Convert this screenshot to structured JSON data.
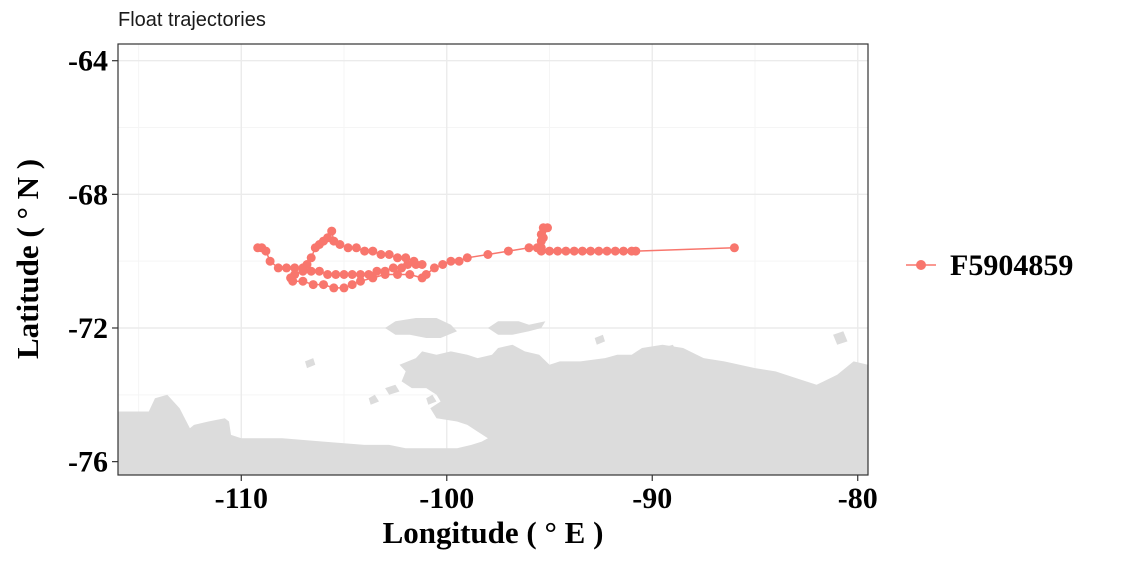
{
  "colors": {
    "series": "#F8766D",
    "land": "#DCDCDC",
    "grid_major": "#EBEBEB",
    "grid_minor": "#F5F5F5",
    "border": "#333333"
  },
  "chart_data": {
    "type": "line",
    "title": "Float trajectories",
    "xlabel": "Longitude ( ° E )",
    "ylabel": "Latitude ( ° N )",
    "xlim": [
      -116,
      -79.5
    ],
    "ylim": [
      -76.4,
      -63.5
    ],
    "x_ticks": [
      -110,
      -100,
      -90,
      -80
    ],
    "y_ticks": [
      -64,
      -68,
      -72,
      -76
    ],
    "x_tick_labels": [
      "-110",
      "-100",
      "-90",
      "-80"
    ],
    "y_tick_labels": [
      "-64",
      "-68",
      "-72",
      "-76"
    ],
    "grid": true,
    "legend_position": "right",
    "series": [
      {
        "name": "F5904859",
        "marker": "circle",
        "points": [
          [
            -109.2,
            -69.6
          ],
          [
            -109.0,
            -69.6
          ],
          [
            -108.8,
            -69.7
          ],
          [
            -108.6,
            -70.0
          ],
          [
            -108.2,
            -70.2
          ],
          [
            -107.8,
            -70.2
          ],
          [
            -107.4,
            -70.2
          ],
          [
            -107.0,
            -70.2
          ],
          [
            -106.6,
            -70.3
          ],
          [
            -106.2,
            -70.3
          ],
          [
            -105.8,
            -70.4
          ],
          [
            -105.4,
            -70.4
          ],
          [
            -105.0,
            -70.4
          ],
          [
            -104.6,
            -70.4
          ],
          [
            -104.2,
            -70.4
          ],
          [
            -103.8,
            -70.4
          ],
          [
            -103.4,
            -70.3
          ],
          [
            -103.0,
            -70.3
          ],
          [
            -102.6,
            -70.2
          ],
          [
            -102.2,
            -70.2
          ],
          [
            -101.9,
            -70.1
          ],
          [
            -101.5,
            -70.1
          ],
          [
            -101.2,
            -70.1
          ],
          [
            -101.6,
            -70.0
          ],
          [
            -102.0,
            -69.9
          ],
          [
            -102.4,
            -69.9
          ],
          [
            -102.8,
            -69.8
          ],
          [
            -103.2,
            -69.8
          ],
          [
            -103.6,
            -69.7
          ],
          [
            -104.0,
            -69.7
          ],
          [
            -104.4,
            -69.6
          ],
          [
            -104.8,
            -69.6
          ],
          [
            -105.2,
            -69.5
          ],
          [
            -105.5,
            -69.4
          ],
          [
            -105.6,
            -69.1
          ],
          [
            -105.8,
            -69.3
          ],
          [
            -106.0,
            -69.4
          ],
          [
            -106.2,
            -69.5
          ],
          [
            -106.4,
            -69.6
          ],
          [
            -106.6,
            -69.9
          ],
          [
            -106.8,
            -70.1
          ],
          [
            -107.0,
            -70.3
          ],
          [
            -107.4,
            -70.4
          ],
          [
            -107.6,
            -70.5
          ],
          [
            -107.5,
            -70.6
          ],
          [
            -107.0,
            -70.6
          ],
          [
            -106.5,
            -70.7
          ],
          [
            -106.0,
            -70.7
          ],
          [
            -105.5,
            -70.8
          ],
          [
            -105.0,
            -70.8
          ],
          [
            -104.6,
            -70.7
          ],
          [
            -104.2,
            -70.6
          ],
          [
            -103.6,
            -70.5
          ],
          [
            -103.0,
            -70.4
          ],
          [
            -102.4,
            -70.4
          ],
          [
            -101.8,
            -70.4
          ],
          [
            -101.2,
            -70.5
          ],
          [
            -101.0,
            -70.4
          ],
          [
            -100.6,
            -70.2
          ],
          [
            -100.2,
            -70.1
          ],
          [
            -99.8,
            -70.0
          ],
          [
            -99.4,
            -70.0
          ],
          [
            -99.0,
            -69.9
          ],
          [
            -98.0,
            -69.8
          ],
          [
            -97.0,
            -69.7
          ],
          [
            -96.0,
            -69.6
          ],
          [
            -95.6,
            -69.6
          ],
          [
            -95.4,
            -69.4
          ],
          [
            -95.4,
            -69.2
          ],
          [
            -95.3,
            -69.0
          ],
          [
            -95.1,
            -69.0
          ],
          [
            -95.3,
            -69.3
          ],
          [
            -95.4,
            -69.6
          ],
          [
            -95.4,
            -69.7
          ],
          [
            -95.0,
            -69.7
          ],
          [
            -94.6,
            -69.7
          ],
          [
            -94.2,
            -69.7
          ],
          [
            -93.8,
            -69.7
          ],
          [
            -93.4,
            -69.7
          ],
          [
            -93.0,
            -69.7
          ],
          [
            -92.6,
            -69.7
          ],
          [
            -92.2,
            -69.7
          ],
          [
            -91.8,
            -69.7
          ],
          [
            -91.4,
            -69.7
          ],
          [
            -91.0,
            -69.7
          ],
          [
            -90.8,
            -69.7
          ],
          [
            -86.0,
            -69.6
          ]
        ]
      }
    ],
    "land_polygons": [
      [
        [
          -116,
          -76.4
        ],
        [
          -116,
          -74.5
        ],
        [
          -115.2,
          -74.5
        ],
        [
          -114.5,
          -74.5
        ],
        [
          -114.2,
          -74.1
        ],
        [
          -113.6,
          -74.0
        ],
        [
          -113.0,
          -74.4
        ],
        [
          -112.5,
          -75.0
        ],
        [
          -112.3,
          -74.9
        ],
        [
          -111.6,
          -74.8
        ],
        [
          -110.8,
          -74.7
        ],
        [
          -110.6,
          -74.8
        ],
        [
          -110.5,
          -75.2
        ],
        [
          -110.0,
          -75.3
        ],
        [
          -108.0,
          -75.3
        ],
        [
          -106.0,
          -75.4
        ],
        [
          -104.0,
          -75.5
        ],
        [
          -102.8,
          -75.5
        ],
        [
          -102.0,
          -75.6
        ],
        [
          -100.5,
          -75.6
        ],
        [
          -99.5,
          -75.6
        ],
        [
          -98.8,
          -75.5
        ],
        [
          -98.3,
          -75.4
        ],
        [
          -98.0,
          -75.3
        ],
        [
          -98.5,
          -75.1
        ],
        [
          -99.0,
          -74.9
        ],
        [
          -99.5,
          -74.8
        ],
        [
          -100.5,
          -74.7
        ],
        [
          -100.8,
          -74.4
        ],
        [
          -100.3,
          -74.2
        ],
        [
          -100.5,
          -74.0
        ],
        [
          -101.0,
          -73.8
        ],
        [
          -101.7,
          -73.8
        ],
        [
          -102.2,
          -73.6
        ],
        [
          -102.0,
          -73.3
        ],
        [
          -102.3,
          -73.1
        ],
        [
          -101.5,
          -72.9
        ],
        [
          -101.2,
          -72.7
        ],
        [
          -100.5,
          -72.8
        ],
        [
          -99.8,
          -72.7
        ],
        [
          -99.0,
          -72.8
        ],
        [
          -98.5,
          -72.9
        ],
        [
          -97.8,
          -72.8
        ],
        [
          -97.5,
          -72.6
        ],
        [
          -96.8,
          -72.5
        ],
        [
          -96.2,
          -72.7
        ],
        [
          -95.5,
          -72.8
        ],
        [
          -95.0,
          -73.1
        ],
        [
          -94.5,
          -73.0
        ],
        [
          -93.5,
          -73.0
        ],
        [
          -92.3,
          -72.9
        ],
        [
          -91.7,
          -72.8
        ],
        [
          -91.0,
          -72.8
        ],
        [
          -90.5,
          -72.6
        ],
        [
          -89.5,
          -72.5
        ],
        [
          -88.5,
          -72.6
        ],
        [
          -87.5,
          -72.9
        ],
        [
          -86.5,
          -73.0
        ],
        [
          -85.0,
          -73.2
        ],
        [
          -84.0,
          -73.3
        ],
        [
          -83.0,
          -73.5
        ],
        [
          -82.0,
          -73.7
        ],
        [
          -81.0,
          -73.4
        ],
        [
          -80.2,
          -73.0
        ],
        [
          -79.5,
          -73.1
        ],
        [
          -79.5,
          -76.4
        ]
      ],
      [
        [
          -98.0,
          -72.0
        ],
        [
          -97.5,
          -71.8
        ],
        [
          -96.5,
          -71.8
        ],
        [
          -96.0,
          -71.9
        ],
        [
          -95.2,
          -71.8
        ],
        [
          -95.4,
          -72.0
        ],
        [
          -96.0,
          -72.1
        ],
        [
          -96.8,
          -72.2
        ],
        [
          -97.5,
          -72.2
        ]
      ],
      [
        [
          -103.0,
          -72.0
        ],
        [
          -102.5,
          -71.8
        ],
        [
          -101.5,
          -71.7
        ],
        [
          -100.5,
          -71.7
        ],
        [
          -99.8,
          -71.9
        ],
        [
          -99.5,
          -72.1
        ],
        [
          -100.3,
          -72.3
        ],
        [
          -101.0,
          -72.3
        ],
        [
          -101.8,
          -72.2
        ],
        [
          -102.5,
          -72.2
        ]
      ],
      [
        [
          -103.0,
          -73.8
        ],
        [
          -102.5,
          -73.7
        ],
        [
          -102.3,
          -73.9
        ],
        [
          -102.8,
          -74.0
        ]
      ],
      [
        [
          -103.8,
          -74.1
        ],
        [
          -103.5,
          -74.0
        ],
        [
          -103.3,
          -74.2
        ],
        [
          -103.7,
          -74.3
        ]
      ],
      [
        [
          -101.0,
          -74.1
        ],
        [
          -100.7,
          -74.0
        ],
        [
          -100.5,
          -74.2
        ],
        [
          -100.9,
          -74.3
        ]
      ],
      [
        [
          -99.2,
          -74.4
        ],
        [
          -99.0,
          -74.3
        ],
        [
          -98.8,
          -74.5
        ],
        [
          -99.1,
          -74.6
        ]
      ],
      [
        [
          -106.9,
          -73.0
        ],
        [
          -106.5,
          -72.9
        ],
        [
          -106.4,
          -73.1
        ],
        [
          -106.8,
          -73.2
        ]
      ],
      [
        [
          -89.5,
          -72.6
        ],
        [
          -89.0,
          -72.5
        ],
        [
          -88.8,
          -72.7
        ],
        [
          -89.3,
          -72.8
        ]
      ],
      [
        [
          -92.8,
          -72.3
        ],
        [
          -92.4,
          -72.2
        ],
        [
          -92.3,
          -72.4
        ],
        [
          -92.7,
          -72.5
        ]
      ],
      [
        [
          -81.2,
          -72.2
        ],
        [
          -80.7,
          -72.1
        ],
        [
          -80.5,
          -72.4
        ],
        [
          -81.0,
          -72.5
        ]
      ]
    ]
  }
}
